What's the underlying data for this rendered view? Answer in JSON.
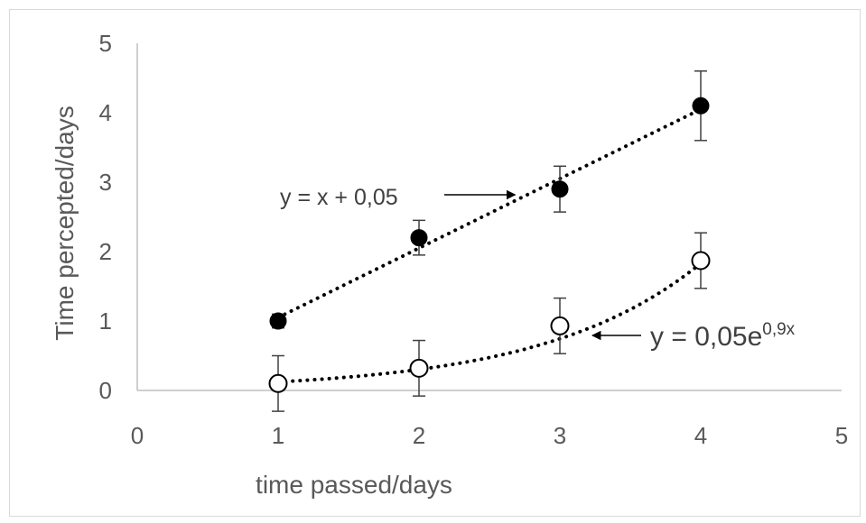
{
  "chart_data": {
    "type": "scatter",
    "title": "",
    "xlabel": "time passed/days",
    "ylabel": "Time percepted/days",
    "xlim": [
      0,
      5
    ],
    "ylim": [
      0,
      5
    ],
    "x_ticks": [
      "0",
      "1",
      "2",
      "3",
      "4",
      "5"
    ],
    "y_ticks": [
      "0",
      "1",
      "2",
      "3",
      "4",
      "5"
    ],
    "grid": false,
    "legend": "none",
    "series": [
      {
        "marker": "filled-circle",
        "color": "#000000",
        "x": [
          1,
          2,
          3,
          4
        ],
        "y": [
          1.0,
          2.2,
          2.9,
          4.1
        ],
        "error": [
          0.1,
          0.25,
          0.33,
          0.5
        ],
        "trendline": {
          "type": "linear",
          "slope": 1,
          "intercept": 0.05,
          "style": "dotted"
        }
      },
      {
        "marker": "open-circle",
        "color": "#000000",
        "x": [
          1,
          2,
          3,
          4
        ],
        "y": [
          0.1,
          0.32,
          0.93,
          1.87
        ],
        "error": [
          0.4,
          0.4,
          0.4,
          0.4
        ],
        "trendline": {
          "type": "exponential",
          "a": 0.05,
          "b": 0.9,
          "style": "dotted"
        }
      }
    ],
    "annotations": [
      {
        "text": "y = x + 0,05",
        "points_to": {
          "x": 2.65,
          "y": 2.7
        }
      },
      {
        "text_base": "y = 0,05e",
        "text_sup": "0,9x",
        "points_to": {
          "x": 3.22,
          "y": 0.8
        }
      }
    ]
  }
}
